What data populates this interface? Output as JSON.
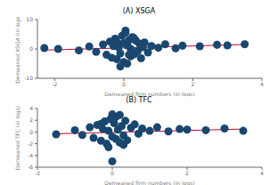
{
  "chart_data": [
    {
      "type": "scatter",
      "title": "(A) XSGA",
      "x_label": "Demeaned firm numbers (in logs)",
      "y_label": "Demeaned XSGA (in logs)",
      "xlim": [
        -2.5,
        4
      ],
      "xticks": [
        -2,
        0,
        2,
        4
      ],
      "ylim": [
        -10,
        10
      ],
      "yticks": [
        -10,
        0,
        10
      ],
      "grid": false,
      "series": [
        {
          "type": "scatter",
          "color": "#1a476f",
          "marker": "circle",
          "x": [
            -2.3,
            -1.9,
            -1.3,
            -1.0,
            -0.8,
            -0.6,
            -0.5,
            -0.4,
            -0.35,
            -0.3,
            -0.25,
            -0.2,
            -0.15,
            -0.1,
            -0.05,
            0.0,
            0.0,
            0.05,
            0.1,
            0.1,
            0.15,
            0.2,
            0.2,
            0.25,
            0.3,
            0.35,
            0.4,
            0.45,
            0.5,
            0.55,
            0.6,
            0.7,
            0.8,
            1.0,
            1.2,
            1.5,
            1.7,
            2.2,
            2.7,
            3.0,
            3.5,
            -0.1,
            0.05,
            0.15,
            0.3,
            -0.2
          ],
          "values": [
            0.3,
            0.0,
            -0.5,
            0.8,
            -1.0,
            1.5,
            -2.0,
            2.5,
            -3.0,
            1.0,
            3.5,
            -3.5,
            0.5,
            -1.5,
            4.5,
            -4.5,
            2.0,
            5.5,
            -5.0,
            1.2,
            3.0,
            -2.5,
            0.0,
            4.0,
            -1.8,
            2.8,
            -0.8,
            1.8,
            -3.2,
            0.6,
            2.2,
            -1.2,
            1.0,
            0.4,
            1.6,
            0.2,
            1.1,
            0.9,
            1.4,
            1.2,
            1.6,
            -6.0,
            6.2,
            -2.0,
            3.6,
            2.4
          ]
        },
        {
          "type": "line",
          "color": "#c10534",
          "x": [
            -2.3,
            3.5
          ],
          "values": [
            -0.4,
            1.5
          ]
        }
      ]
    },
    {
      "type": "scatter",
      "title": "(B) TFC",
      "x_label": "Demeaned firm numbers (in logs)",
      "y_label": "Demeaned TFC (in logs)",
      "xlim": [
        -2,
        4
      ],
      "xticks": [
        -2,
        0,
        2,
        4
      ],
      "ylim": [
        -6,
        4
      ],
      "yticks": [
        -6,
        -4,
        -2,
        0,
        2,
        4
      ],
      "grid": false,
      "series": [
        {
          "type": "scatter",
          "color": "#1a476f",
          "marker": "circle",
          "x": [
            -1.5,
            -1.0,
            -0.8,
            -0.6,
            -0.5,
            -0.4,
            -0.3,
            -0.25,
            -0.2,
            -0.15,
            -0.1,
            -0.05,
            0.0,
            0.0,
            0.05,
            0.1,
            0.1,
            0.15,
            0.2,
            0.25,
            0.3,
            0.35,
            0.4,
            0.5,
            0.6,
            0.7,
            0.8,
            1.0,
            1.2,
            1.5,
            1.8,
            2.0,
            2.5,
            3.0,
            3.5,
            0.0,
            -0.1,
            0.2,
            0.3,
            -0.3
          ],
          "values": [
            -0.4,
            0.3,
            -0.5,
            0.8,
            -1.0,
            1.2,
            -1.5,
            0.5,
            1.8,
            -2.0,
            0.2,
            2.2,
            -5.0,
            -0.8,
            1.5,
            -1.2,
            2.6,
            0.4,
            -1.8,
            1.0,
            -0.6,
            1.9,
            -1.4,
            0.7,
            1.3,
            -0.3,
            0.6,
            0.2,
            0.8,
            0.1,
            0.5,
            0.4,
            0.3,
            0.6,
            0.2,
            3.0,
            -2.6,
            2.9,
            -2.2,
            1.4
          ]
        },
        {
          "type": "line",
          "color": "#c10534",
          "x": [
            -1.5,
            3.5
          ],
          "values": [
            -0.3,
            0.5
          ]
        }
      ]
    }
  ]
}
